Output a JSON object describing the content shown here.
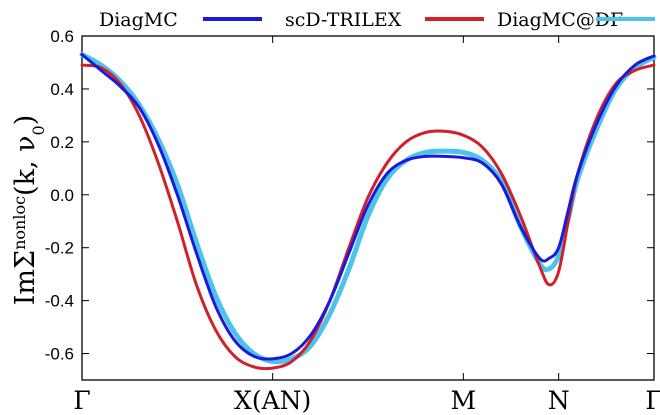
{
  "chart_data": {
    "type": "line",
    "title": "",
    "ylabel": {
      "prefix": "ImΣ",
      "sup": "nonloc",
      "args": "(k, ν",
      "sub": "0",
      "close": ")"
    },
    "xlabel": "",
    "x_ticks": [
      {
        "label": "Γ",
        "x": 0.0
      },
      {
        "label": "X(AN)",
        "x": 1.0
      },
      {
        "label": "M",
        "x": 2.0
      },
      {
        "label": "N",
        "x": 2.5
      },
      {
        "label": "Γ",
        "x": 3.0
      }
    ],
    "xlim": [
      0,
      3
    ],
    "ylim": [
      -0.7,
      0.6
    ],
    "y_ticks": [
      {
        "label": "0.6",
        "value": 0.6
      },
      {
        "label": "0.4",
        "value": 0.4
      },
      {
        "label": "0.2",
        "value": 0.2
      },
      {
        "label": "0.0",
        "value": 0.0
      },
      {
        "label": "-0.2",
        "value": -0.2
      },
      {
        "label": "-0.4",
        "value": -0.4
      },
      {
        "label": "-0.6",
        "value": -0.6
      }
    ],
    "grid": false,
    "legend_position": "top",
    "series": [
      {
        "name": "DiagMC",
        "color": "#1a1adb",
        "x": [
          0,
          0.1,
          0.2,
          0.3,
          0.4,
          0.5,
          0.6,
          0.7,
          0.8,
          0.9,
          1.0,
          1.1,
          1.2,
          1.3,
          1.4,
          1.5,
          1.6,
          1.7,
          1.8,
          1.9,
          2.0,
          2.1,
          2.2,
          2.3,
          2.4,
          2.45,
          2.5,
          2.55,
          2.6,
          2.7,
          2.8,
          2.9,
          3.0
        ],
        "y": [
          0.53,
          0.47,
          0.41,
          0.33,
          0.19,
          0.0,
          -0.22,
          -0.42,
          -0.55,
          -0.61,
          -0.62,
          -0.6,
          -0.53,
          -0.4,
          -0.22,
          -0.04,
          0.08,
          0.13,
          0.145,
          0.145,
          0.14,
          0.12,
          0.04,
          -0.12,
          -0.24,
          -0.24,
          -0.2,
          -0.06,
          0.08,
          0.27,
          0.41,
          0.49,
          0.525
        ]
      },
      {
        "name": "scD-TRILEX",
        "color": "#d0202a",
        "x": [
          0,
          0.1,
          0.2,
          0.3,
          0.4,
          0.5,
          0.6,
          0.7,
          0.8,
          0.9,
          1.0,
          1.1,
          1.2,
          1.3,
          1.4,
          1.5,
          1.6,
          1.7,
          1.8,
          1.9,
          2.0,
          2.1,
          2.2,
          2.3,
          2.4,
          2.45,
          2.5,
          2.55,
          2.6,
          2.7,
          2.8,
          2.9,
          3.0
        ],
        "y": [
          0.49,
          0.48,
          0.42,
          0.3,
          0.12,
          -0.1,
          -0.34,
          -0.51,
          -0.61,
          -0.65,
          -0.655,
          -0.63,
          -0.55,
          -0.4,
          -0.2,
          -0.01,
          0.12,
          0.2,
          0.235,
          0.24,
          0.225,
          0.18,
          0.08,
          -0.08,
          -0.27,
          -0.34,
          -0.29,
          -0.1,
          0.08,
          0.29,
          0.42,
          0.47,
          0.49
        ]
      },
      {
        "name": "DiagMC@DF",
        "color": "#4dc3eb",
        "x": [
          0,
          0.1,
          0.2,
          0.3,
          0.4,
          0.5,
          0.6,
          0.7,
          0.8,
          0.9,
          1.0,
          1.1,
          1.2,
          1.3,
          1.4,
          1.5,
          1.6,
          1.7,
          1.8,
          1.9,
          2.0,
          2.1,
          2.2,
          2.3,
          2.4,
          2.45,
          2.5,
          2.55,
          2.6,
          2.7,
          2.8,
          2.9,
          3.0
        ],
        "y": [
          0.53,
          0.49,
          0.43,
          0.34,
          0.21,
          0.04,
          -0.18,
          -0.38,
          -0.52,
          -0.6,
          -0.63,
          -0.62,
          -0.57,
          -0.45,
          -0.28,
          -0.08,
          0.06,
          0.13,
          0.16,
          0.165,
          0.16,
          0.13,
          0.05,
          -0.12,
          -0.26,
          -0.28,
          -0.23,
          -0.09,
          0.06,
          0.25,
          0.4,
          0.48,
          0.52
        ]
      }
    ]
  }
}
